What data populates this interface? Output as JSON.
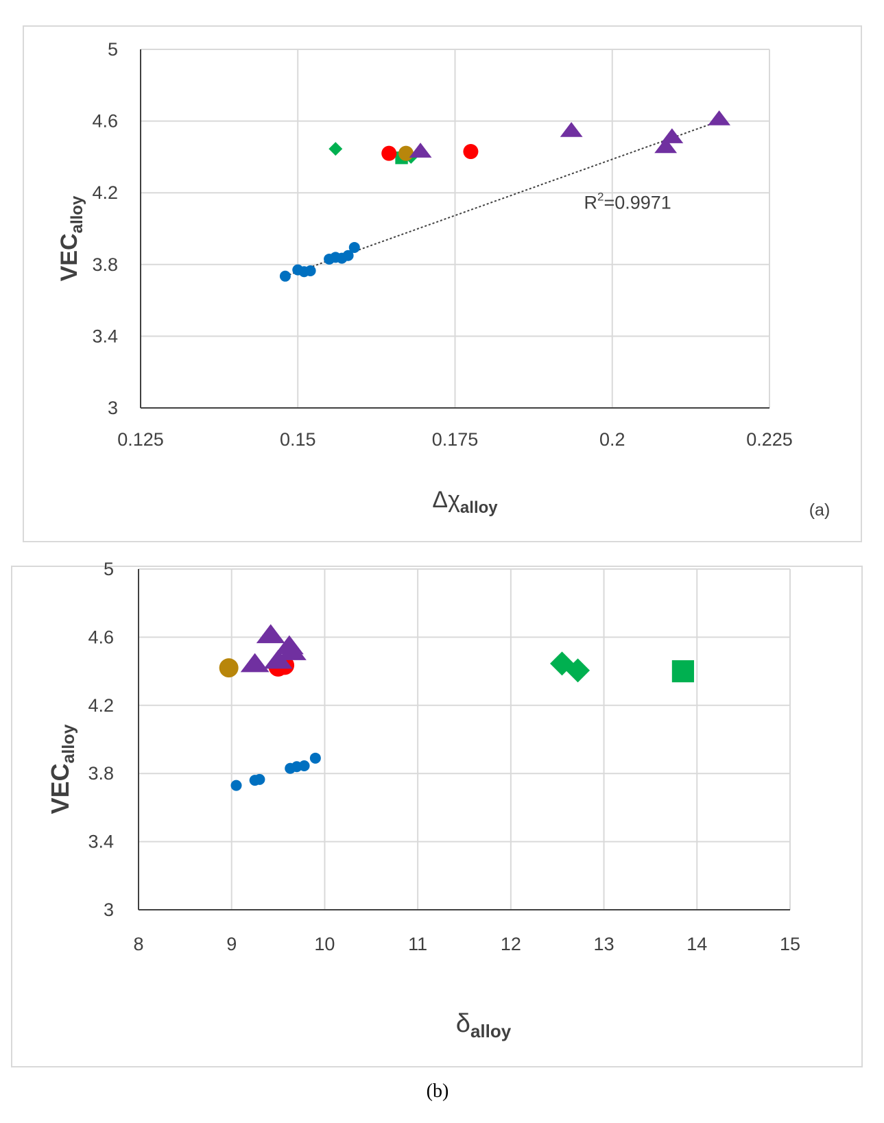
{
  "colors": {
    "blue": "#0070C0",
    "red": "#FF0000",
    "gold": "#B8860B",
    "green": "#00B050",
    "purple": "#7030A0",
    "grid": "#d9d9d9",
    "axis": "#404040"
  },
  "chart_data": [
    {
      "type": "scatter",
      "panel_label": "(a)",
      "xlabel": {
        "main": "Δχ",
        "sub": "alloy"
      },
      "ylabel": {
        "main": "VEC",
        "sub": "alloy"
      },
      "xlim": [
        0.125,
        0.225
      ],
      "ylim": [
        3,
        5
      ],
      "xticks": [
        "0.125",
        "0.15",
        "0.175",
        "0.2",
        "0.225"
      ],
      "yticks": [
        "3",
        "3.4",
        "3.8",
        "4.2",
        "4.6",
        "5"
      ],
      "grid": true,
      "annotation": {
        "prefix": "R",
        "sup": "2",
        "value": "=0.9971",
        "x": 0.1955,
        "y": 4.11
      },
      "trendline": {
        "from": [
          0.148,
          3.735
        ],
        "to": [
          0.217,
          4.6
        ]
      },
      "series": [
        {
          "marker": "circle",
          "color": "blue",
          "size": "small",
          "points": [
            [
              0.148,
              3.735
            ],
            [
              0.15,
              3.77
            ],
            [
              0.151,
              3.76
            ],
            [
              0.152,
              3.765
            ],
            [
              0.155,
              3.83
            ],
            [
              0.156,
              3.84
            ],
            [
              0.157,
              3.835
            ],
            [
              0.158,
              3.85
            ],
            [
              0.159,
              3.895
            ]
          ]
        },
        {
          "marker": "diamond",
          "color": "green",
          "size": "small",
          "points": [
            [
              0.156,
              4.445
            ],
            [
              0.168,
              4.4
            ]
          ]
        },
        {
          "marker": "square",
          "color": "green",
          "size": "small",
          "points": [
            [
              0.1665,
              4.395
            ]
          ]
        },
        {
          "marker": "circle",
          "color": "red",
          "size": "medium",
          "points": [
            [
              0.1645,
              4.42
            ],
            [
              0.1775,
              4.43
            ]
          ]
        },
        {
          "marker": "circle",
          "color": "gold",
          "size": "medium",
          "points": [
            [
              0.1672,
              4.42
            ]
          ]
        },
        {
          "marker": "triangle",
          "color": "purple",
          "size": "medium",
          "points": [
            [
              0.1695,
              4.43
            ],
            [
              0.1935,
              4.545
            ],
            [
              0.2085,
              4.455
            ],
            [
              0.2095,
              4.51
            ],
            [
              0.217,
              4.61
            ]
          ]
        }
      ]
    },
    {
      "type": "scatter",
      "panel_label": "(b)",
      "xlabel": {
        "main": "δ",
        "sub": "alloy"
      },
      "ylabel": {
        "main": "VEC",
        "sub": "alloy"
      },
      "xlim": [
        8,
        15
      ],
      "ylim": [
        3,
        5
      ],
      "xticks": [
        "8",
        "9",
        "10",
        "11",
        "12",
        "13",
        "14",
        "15"
      ],
      "yticks": [
        "3",
        "3.4",
        "3.8",
        "4.2",
        "4.6",
        "5"
      ],
      "grid": true,
      "series": [
        {
          "marker": "circle",
          "color": "blue",
          "size": "small",
          "points": [
            [
              9.05,
              3.73
            ],
            [
              9.25,
              3.76
            ],
            [
              9.3,
              3.765
            ],
            [
              9.63,
              3.83
            ],
            [
              9.7,
              3.84
            ],
            [
              9.78,
              3.845
            ],
            [
              9.9,
              3.89
            ]
          ]
        },
        {
          "marker": "circle",
          "color": "gold",
          "size": "large",
          "points": [
            [
              8.97,
              4.42
            ]
          ]
        },
        {
          "marker": "circle",
          "color": "red",
          "size": "large",
          "points": [
            [
              9.5,
              4.425
            ],
            [
              9.57,
              4.435
            ]
          ]
        },
        {
          "marker": "triangle",
          "color": "purple",
          "size": "large",
          "points": [
            [
              9.25,
              4.44
            ],
            [
              9.42,
              4.61
            ],
            [
              9.5,
              4.46
            ],
            [
              9.62,
              4.545
            ],
            [
              9.65,
              4.51
            ]
          ]
        },
        {
          "marker": "diamond",
          "color": "green",
          "size": "large",
          "points": [
            [
              12.55,
              4.445
            ],
            [
              12.72,
              4.405
            ]
          ]
        },
        {
          "marker": "square",
          "color": "green",
          "size": "large",
          "points": [
            [
              13.85,
              4.4
            ]
          ]
        }
      ]
    }
  ]
}
